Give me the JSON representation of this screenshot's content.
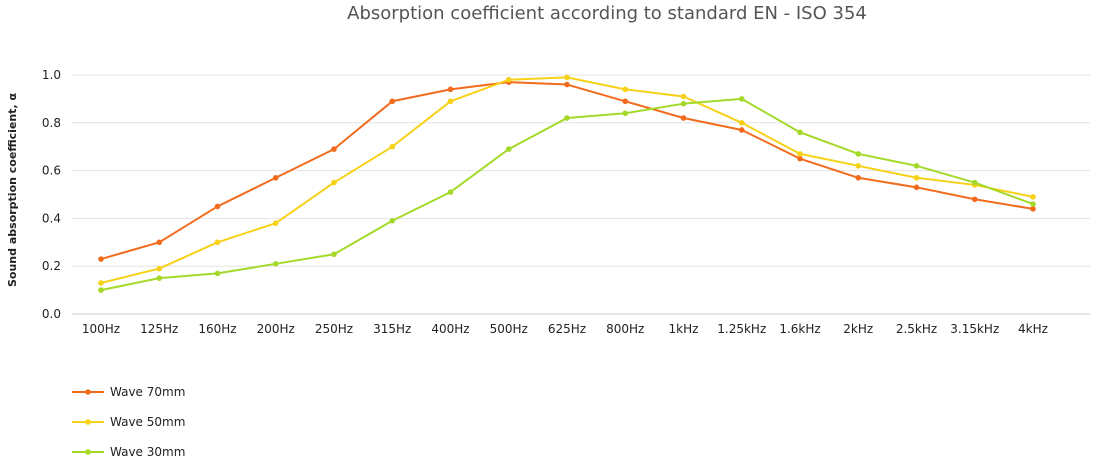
{
  "chart_data": {
    "type": "line",
    "title": "Absorption coefficient according to standard EN - ISO 354",
    "xlabel": "",
    "ylabel": "Sound absorption coefficient, α",
    "ylim": [
      0,
      1
    ],
    "yticks": [
      "0.0",
      "0.2",
      "0.4",
      "0.6",
      "0.8",
      "1.0"
    ],
    "grid": true,
    "legend_position": "bottom-left",
    "categories": [
      "100Hz",
      "125Hz",
      "160Hz",
      "200Hz",
      "250Hz",
      "315Hz",
      "400Hz",
      "500Hz",
      "625Hz",
      "800Hz",
      "1kHz",
      "1.25kHz",
      "1.6kHz",
      "2kHz",
      "2.5kHz",
      "3.15kHz",
      "4kHz"
    ],
    "series": [
      {
        "name": "Wave 70mm",
        "color": "#f26b1d",
        "values": [
          0.23,
          0.3,
          0.45,
          0.57,
          0.69,
          0.89,
          0.94,
          0.97,
          0.96,
          0.89,
          0.82,
          0.77,
          0.65,
          0.57,
          0.53,
          0.48,
          0.44
        ]
      },
      {
        "name": "Wave 50mm",
        "color": "#f7d117",
        "values": [
          0.13,
          0.19,
          0.3,
          0.38,
          0.55,
          0.7,
          0.89,
          0.98,
          0.99,
          0.94,
          0.91,
          0.8,
          0.67,
          0.62,
          0.57,
          0.54,
          0.49
        ]
      },
      {
        "name": "Wave 30mm",
        "color": "#a4d92a",
        "values": [
          0.1,
          0.15,
          0.17,
          0.21,
          0.25,
          0.39,
          0.51,
          0.69,
          0.82,
          0.84,
          0.88,
          0.9,
          0.76,
          0.67,
          0.62,
          0.55,
          0.46
        ]
      }
    ]
  }
}
